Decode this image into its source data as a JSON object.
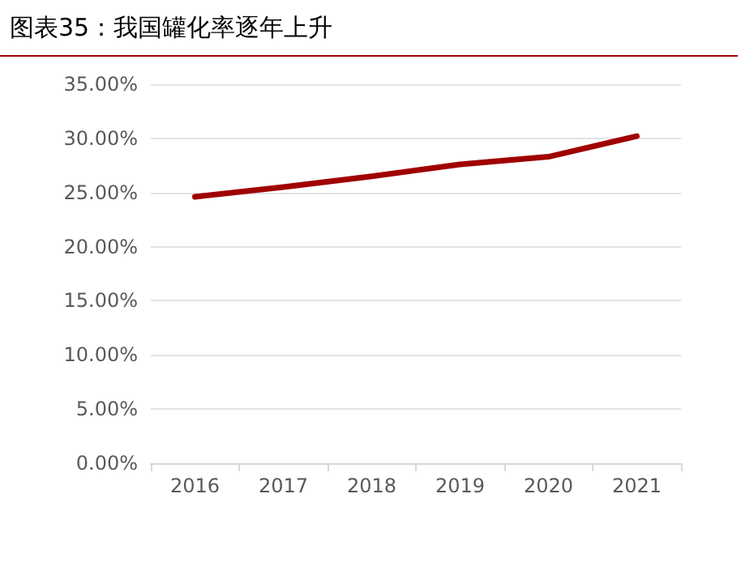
{
  "chart_data": {
    "type": "line",
    "title": "图表35：我国罐化率逐年上升",
    "categories": [
      "2016",
      "2017",
      "2018",
      "2019",
      "2020",
      "2021"
    ],
    "series": [
      {
        "color": "#a00000",
        "values": [
          24.6,
          25.5,
          26.5,
          27.6,
          28.3,
          30.2
        ]
      }
    ],
    "ylim": [
      0,
      35
    ],
    "yticks": [
      {
        "value": 0,
        "label": "0.00%"
      },
      {
        "value": 5,
        "label": "5.00%"
      },
      {
        "value": 10,
        "label": "10.00%"
      },
      {
        "value": 15,
        "label": "15.00%"
      },
      {
        "value": 20,
        "label": "20.00%"
      },
      {
        "value": 25,
        "label": "25.00%"
      },
      {
        "value": 30,
        "label": "30.00%"
      },
      {
        "value": 35,
        "label": "35.00%"
      }
    ],
    "grid": "y",
    "marker": "none",
    "line_style": "solid"
  }
}
